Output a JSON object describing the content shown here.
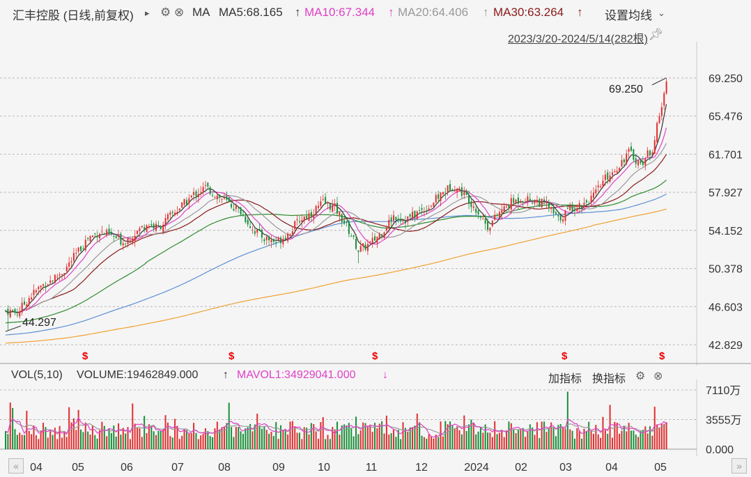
{
  "header": {
    "title": "汇丰控股 (日线,前复权)",
    "play_icon": "▸",
    "ma_label": "MA",
    "ma5": "MA5:68.165",
    "ma10": "MA10:67.344",
    "ma20": "MA20:64.406",
    "ma30": "MA30:63.264",
    "settings": "设置均线",
    "range": "2023/3/20-2024/5/14(282根)",
    "colors": {
      "ma5": "#333333",
      "ma10": "#e040c8",
      "ma20": "#999999",
      "ma30": "#8b1a1a",
      "ma60": "#2e8b2e",
      "ma120": "#5b8fd6",
      "ma250": "#f0a030",
      "up": "#e03030",
      "down": "#1a8f3a"
    }
  },
  "main_axis": {
    "ticks": [
      "69.250",
      "65.476",
      "61.701",
      "57.927",
      "54.152",
      "50.378",
      "46.603",
      "42.829"
    ]
  },
  "annotations": {
    "high_label": "69.250",
    "low_label": "44.297",
    "dividend_marker": "$"
  },
  "volume": {
    "label": "VOL(5,10)",
    "volume": "VOLUME:19462849.000",
    "mavol": "MAVOL1:34929041.000",
    "add_indicator": "加指标",
    "switch_indicator": "换指标",
    "ticks": [
      "7110万",
      "3555万",
      "0.000"
    ]
  },
  "x_axis": {
    "labels": [
      "04",
      "05",
      "06",
      "07",
      "08",
      "09",
      "10",
      "11",
      "12",
      "2024",
      "02",
      "03",
      "04",
      "05"
    ]
  },
  "chart_data": {
    "type": "candlestick",
    "title": "汇丰控股 (日线,前复权)",
    "date_range": [
      "2023-03-20",
      "2024-05-14"
    ],
    "bar_count": 282,
    "ylim": [
      42.829,
      69.25
    ],
    "y_ticks": [
      69.25,
      65.476,
      61.701,
      57.927,
      54.152,
      50.378,
      46.603,
      42.829
    ],
    "highest": 69.25,
    "lowest": 44.297,
    "close_path": [
      [
        0,
        46.2
      ],
      [
        5,
        46.0
      ],
      [
        10,
        47.5
      ],
      [
        15,
        48.6
      ],
      [
        20,
        49.3
      ],
      [
        25,
        50.2
      ],
      [
        30,
        51.8
      ],
      [
        35,
        53.4
      ],
      [
        40,
        54.0
      ],
      [
        45,
        53.6
      ],
      [
        50,
        53.0
      ],
      [
        55,
        53.9
      ],
      [
        60,
        54.8
      ],
      [
        65,
        54.4
      ],
      [
        70,
        55.6
      ],
      [
        75,
        56.6
      ],
      [
        80,
        57.7
      ],
      [
        85,
        58.4
      ],
      [
        90,
        57.6
      ],
      [
        95,
        56.8
      ],
      [
        100,
        56.0
      ],
      [
        105,
        54.3
      ],
      [
        110,
        53.4
      ],
      [
        115,
        53.0
      ],
      [
        120,
        53.8
      ],
      [
        125,
        55.2
      ],
      [
        130,
        55.9
      ],
      [
        135,
        56.9
      ],
      [
        140,
        56.4
      ],
      [
        145,
        54.6
      ],
      [
        150,
        52.2
      ],
      [
        155,
        52.8
      ],
      [
        160,
        54.0
      ],
      [
        165,
        55.6
      ],
      [
        170,
        55.2
      ],
      [
        175,
        55.9
      ],
      [
        180,
        56.5
      ],
      [
        185,
        57.7
      ],
      [
        190,
        58.6
      ],
      [
        195,
        57.8
      ],
      [
        200,
        56.3
      ],
      [
        205,
        54.5
      ],
      [
        210,
        55.9
      ],
      [
        215,
        56.9
      ],
      [
        220,
        57.3
      ],
      [
        225,
        57.1
      ],
      [
        230,
        56.7
      ],
      [
        235,
        55.2
      ],
      [
        240,
        56.3
      ],
      [
        245,
        56.7
      ],
      [
        250,
        57.5
      ],
      [
        255,
        59.3
      ],
      [
        260,
        60.4
      ],
      [
        265,
        61.9
      ],
      [
        270,
        60.7
      ],
      [
        275,
        62.3
      ],
      [
        280,
        67.5
      ],
      [
        282,
        69.25
      ]
    ],
    "volume": {
      "ylim": [
        0,
        7110
      ],
      "unit": "万",
      "last_volume": 19462849.0,
      "mavol1": 34929041.0
    }
  }
}
